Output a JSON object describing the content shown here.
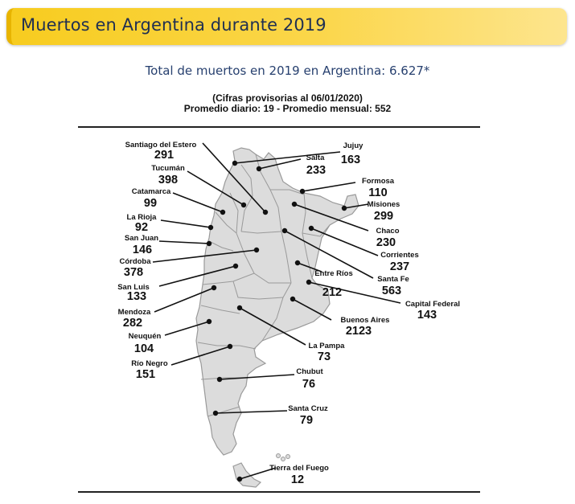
{
  "header": {
    "title": "Muertos en Argentina durante 2019"
  },
  "summary": {
    "total_line": "Total de muertos en 2019 en Argentina: 6.627*",
    "note_line": "(Cifras provisorias al 06/01/2020)",
    "averages_line": "Promedio diario: 19 - Promedio mensual: 552"
  },
  "map": {
    "country": "Argentina",
    "fill_color": "#dcdcdc",
    "border_color": "#9a9a9a",
    "provinces": [
      {
        "id": "santiago-del-estero",
        "name": "Santiago del Estero",
        "value": "291"
      },
      {
        "id": "jujuy",
        "name": "Jujuy",
        "value": "163"
      },
      {
        "id": "salta",
        "name": "Salta",
        "value": "233"
      },
      {
        "id": "tucuman",
        "name": "Tucumán",
        "value": "398"
      },
      {
        "id": "formosa",
        "name": "Formosa",
        "value": "110"
      },
      {
        "id": "catamarca",
        "name": "Catamarca",
        "value": "99"
      },
      {
        "id": "misiones",
        "name": "Misiones",
        "value": "299"
      },
      {
        "id": "la-rioja",
        "name": "La Rioja",
        "value": "92"
      },
      {
        "id": "chaco",
        "name": "Chaco",
        "value": "230"
      },
      {
        "id": "san-juan",
        "name": "San Juan",
        "value": "146"
      },
      {
        "id": "corrientes",
        "name": "Corrientes",
        "value": "237"
      },
      {
        "id": "cordoba",
        "name": "Córdoba",
        "value": "378"
      },
      {
        "id": "entre-rios",
        "name": "Entre Ríos",
        "value": "212"
      },
      {
        "id": "santa-fe",
        "name": "Santa Fe",
        "value": "563"
      },
      {
        "id": "san-luis",
        "name": "San Luis",
        "value": "133"
      },
      {
        "id": "capital-federal",
        "name": "Capital Federal",
        "value": "143"
      },
      {
        "id": "mendoza",
        "name": "Mendoza",
        "value": "282"
      },
      {
        "id": "buenos-aires",
        "name": "Buenos Aires",
        "value": "2123"
      },
      {
        "id": "neuquen",
        "name": "Neuquén",
        "value": "104"
      },
      {
        "id": "la-pampa",
        "name": "La Pampa",
        "value": "73"
      },
      {
        "id": "rio-negro",
        "name": "Río Negro",
        "value": "151"
      },
      {
        "id": "chubut",
        "name": "Chubut",
        "value": "76"
      },
      {
        "id": "santa-cruz",
        "name": "Santa Cruz",
        "value": "79"
      },
      {
        "id": "tierra-del-fuego",
        "name": "Tierra del Fuego",
        "value": "12"
      }
    ]
  }
}
